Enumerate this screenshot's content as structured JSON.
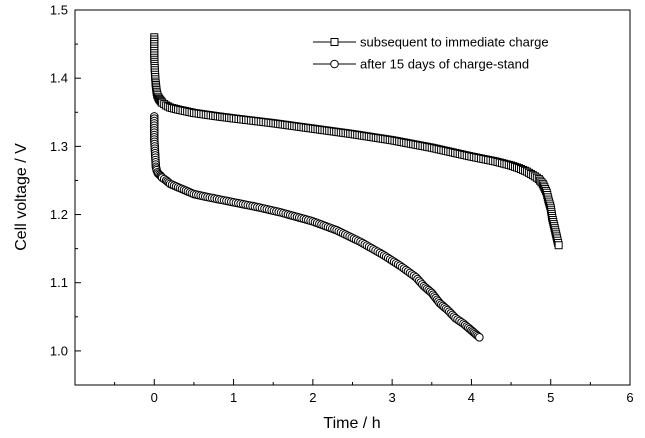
{
  "chart_data": {
    "type": "scatter",
    "title": "",
    "xlabel": "Time / h",
    "ylabel": "Cell voltage / V",
    "xlim": [
      -1,
      6
    ],
    "ylim": [
      0.95,
      1.5
    ],
    "xticks": [
      0,
      1,
      2,
      3,
      4,
      5,
      6
    ],
    "xtick_labels": [
      "0",
      "1",
      "2",
      "3",
      "4",
      "5",
      "6"
    ],
    "yticks": [
      1.0,
      1.1,
      1.2,
      1.3,
      1.4,
      1.5
    ],
    "ytick_labels": [
      "1.0",
      "1.1",
      "1.2",
      "1.3",
      "1.4",
      "1.5"
    ],
    "grid": false,
    "legend_position": "top-right",
    "series": [
      {
        "name": "subsequent to immediate charge",
        "marker": "square",
        "color": "#000000",
        "x": [
          0.0,
          0.0,
          0.0,
          0.005,
          0.01,
          0.015,
          0.02,
          0.025,
          0.03,
          0.04,
          0.05,
          0.06,
          0.08,
          0.1,
          0.15,
          0.2,
          0.3,
          0.5,
          0.8,
          1.0,
          1.5,
          2.0,
          2.5,
          3.0,
          3.5,
          4.0,
          4.3,
          4.5,
          4.6,
          4.7,
          4.8,
          4.85,
          4.9,
          4.92,
          4.95,
          4.97,
          5.0,
          5.02,
          5.05,
          5.08,
          5.1
        ],
        "y": [
          1.46,
          1.45,
          1.43,
          1.415,
          1.405,
          1.395,
          1.39,
          1.385,
          1.38,
          1.375,
          1.372,
          1.37,
          1.367,
          1.364,
          1.36,
          1.357,
          1.354,
          1.349,
          1.344,
          1.341,
          1.334,
          1.326,
          1.318,
          1.309,
          1.298,
          1.285,
          1.278,
          1.272,
          1.268,
          1.263,
          1.256,
          1.252,
          1.245,
          1.24,
          1.232,
          1.222,
          1.21,
          1.195,
          1.18,
          1.165,
          1.155
        ]
      },
      {
        "name": "after 15 days of charge-stand",
        "marker": "circle",
        "color": "#000000",
        "x": [
          0.0,
          0.0,
          0.0,
          0.005,
          0.01,
          0.015,
          0.02,
          0.03,
          0.04,
          0.05,
          0.08,
          0.1,
          0.15,
          0.2,
          0.3,
          0.4,
          0.5,
          0.7,
          1.0,
          1.3,
          1.6,
          2.0,
          2.3,
          2.6,
          2.9,
          3.1,
          3.3,
          3.4,
          3.5,
          3.6,
          3.7,
          3.8,
          3.9,
          4.0,
          4.05,
          4.1
        ],
        "y": [
          1.344,
          1.32,
          1.31,
          1.3,
          1.29,
          1.28,
          1.27,
          1.265,
          1.262,
          1.26,
          1.257,
          1.254,
          1.25,
          1.245,
          1.24,
          1.235,
          1.23,
          1.225,
          1.218,
          1.211,
          1.203,
          1.19,
          1.177,
          1.16,
          1.14,
          1.125,
          1.108,
          1.095,
          1.085,
          1.07,
          1.06,
          1.048,
          1.04,
          1.03,
          1.025,
          1.02
        ]
      }
    ]
  }
}
